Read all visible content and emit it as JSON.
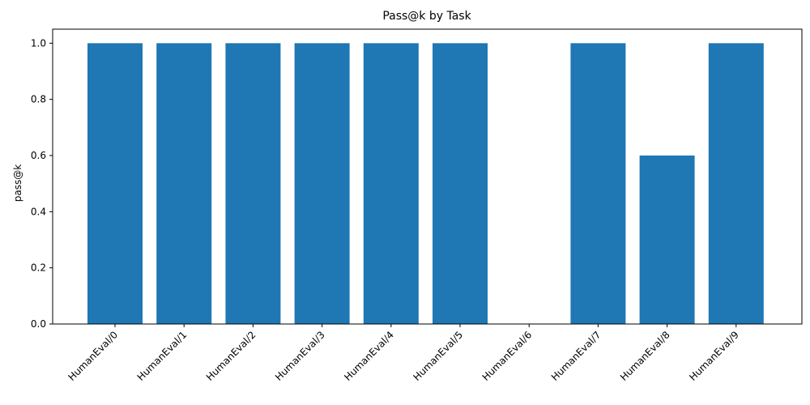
{
  "chart_data": {
    "type": "bar",
    "title": "Pass@k by Task",
    "xlabel": "",
    "ylabel": "pass@k",
    "categories": [
      "HumanEval/0",
      "HumanEval/1",
      "HumanEval/2",
      "HumanEval/3",
      "HumanEval/4",
      "HumanEval/5",
      "HumanEval/6",
      "HumanEval/7",
      "HumanEval/8",
      "HumanEval/9"
    ],
    "values": [
      1.0,
      1.0,
      1.0,
      1.0,
      1.0,
      1.0,
      0.0,
      1.0,
      0.6,
      1.0
    ],
    "ylim": [
      0,
      1.05
    ],
    "yticks": [
      "0.0",
      "0.2",
      "0.4",
      "0.6",
      "0.8",
      "1.0"
    ],
    "bar_color": "#1f77b4",
    "grid": false,
    "legend": "none"
  }
}
